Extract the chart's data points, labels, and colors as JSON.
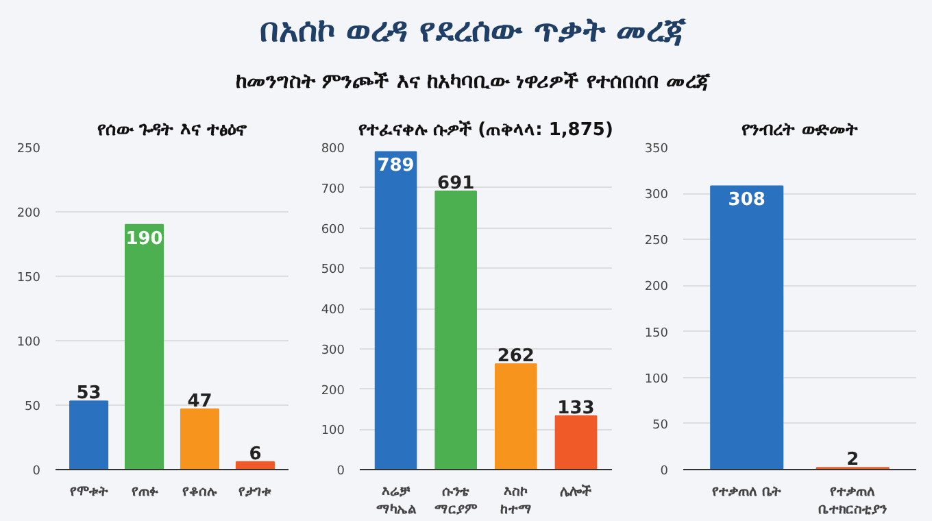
{
  "chart_data": [
    {
      "type": "other",
      "title": "በአሰኮ ወረዳ የደረሰው ጥቃት መረጃ",
      "subtitle": "ከመንግስት ምንጮች እና ከአካባቢው ነዋሪዎች የተሰበሰበ መረጃ"
    },
    {
      "type": "bar",
      "title": "የሰው ጉዳት እና ተፅዕኖ",
      "categories": [
        "የሞቱት",
        "የጠፉ",
        "የቆሰሉ",
        "የታገቱ"
      ],
      "values": [
        53,
        190,
        47,
        6
      ],
      "colors": [
        "#2a72c0",
        "#4caf50",
        "#f7941d",
        "#f05a28"
      ],
      "ylim": [
        0,
        250
      ],
      "yticks": [
        0,
        50,
        100,
        150,
        200,
        250
      ],
      "grid": "y",
      "data_labels": true
    },
    {
      "type": "bar",
      "title": "የተፈናቀሉ ሱዎች (ጠቅላላ: 1,875)",
      "categories": [
        "እሬቻ\nማካኤል",
        "ሱንቴ\nማርያም",
        "እስኮ\nከተማ",
        "ሌሎች"
      ],
      "values": [
        789,
        691,
        262,
        133
      ],
      "colors": [
        "#2a72c0",
        "#4caf50",
        "#f7941d",
        "#f05a28"
      ],
      "ylim": [
        0,
        800
      ],
      "yticks": [
        0,
        100,
        200,
        300,
        400,
        500,
        600,
        700,
        800
      ],
      "grid": "y",
      "data_labels": true
    },
    {
      "type": "bar",
      "title": "የንብረት ውድመት",
      "categories": [
        "የተቃጠለ ቤት",
        "የተቃጠለ\nቤተክርስቲያን"
      ],
      "values": [
        308,
        2
      ],
      "colors": [
        "#2a72c0",
        "#f05a28"
      ],
      "ylim": [
        0,
        350
      ],
      "yticks": [
        0,
        50,
        100,
        150,
        200,
        250,
        300,
        350
      ],
      "grid": "y",
      "data_labels": true
    }
  ]
}
